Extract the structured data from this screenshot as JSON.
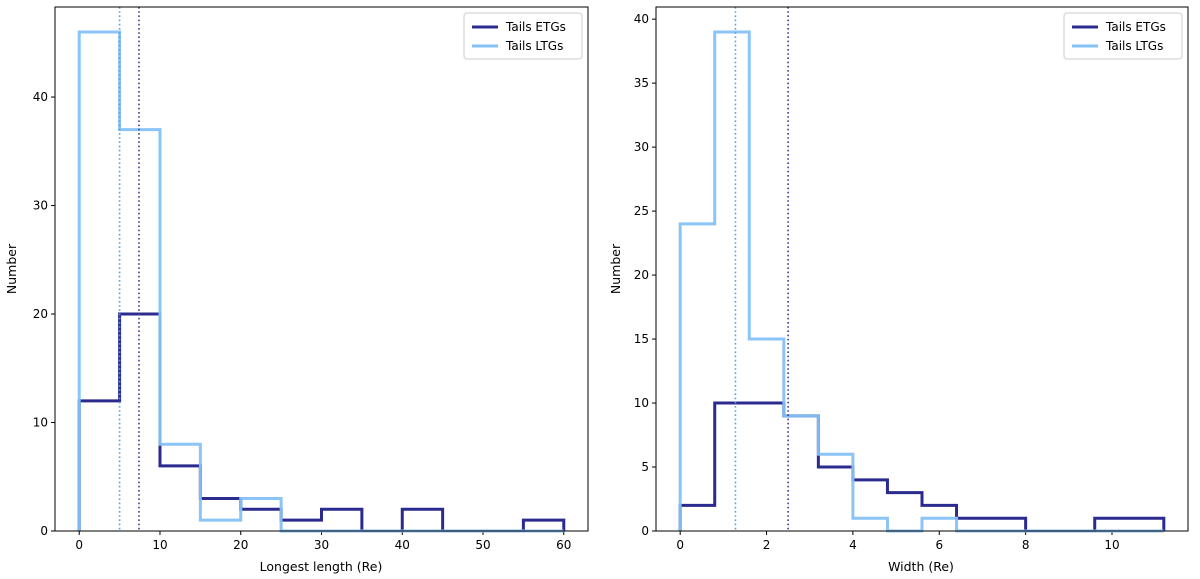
{
  "chart_data": [
    {
      "type": "histogram",
      "title": "",
      "xlabel": "Longest length (Re)",
      "ylabel": "Number",
      "xlim": [
        -3,
        63
      ],
      "ylim": [
        0,
        48.3
      ],
      "xticks": [
        0,
        10,
        20,
        30,
        40,
        50,
        60
      ],
      "yticks": [
        0,
        10,
        20,
        30,
        40
      ],
      "bin_edges": [
        0,
        5,
        10,
        15,
        20,
        25,
        30,
        35,
        40,
        45,
        50,
        55,
        60
      ],
      "series": [
        {
          "name": "Tails ETGs",
          "color": "#2b2b8f",
          "counts": [
            12,
            20,
            6,
            3,
            2,
            1,
            2,
            0,
            2,
            0,
            0,
            1
          ]
        },
        {
          "name": "Tails LTGs",
          "color": "#85c1f5",
          "counts": [
            46,
            37,
            8,
            1,
            3,
            0,
            0,
            0,
            0,
            0,
            0,
            0
          ]
        }
      ],
      "vlines": [
        {
          "series": "Tails LTGs",
          "x": 5.0,
          "color": "#4aa3e8",
          "style": "dotted"
        },
        {
          "series": "Tails ETGs",
          "x": 7.4,
          "color": "#3a3a8f",
          "style": "dotted"
        }
      ],
      "legend": {
        "position": "top-right",
        "entries": [
          "Tails ETGs",
          "Tails LTGs"
        ]
      }
    },
    {
      "type": "histogram",
      "title": "",
      "xlabel": "Width (Re)",
      "ylabel": "Number",
      "xlim": [
        -0.56,
        11.76
      ],
      "ylim": [
        0,
        40.95
      ],
      "xticks": [
        0,
        2,
        4,
        6,
        8,
        10
      ],
      "yticks": [
        0,
        5,
        10,
        15,
        20,
        25,
        30,
        35,
        40
      ],
      "bin_edges": [
        0,
        0.8,
        1.6,
        2.4,
        3.2,
        4.0,
        4.8,
        5.6,
        6.4,
        7.2,
        8.0,
        8.8,
        9.6,
        10.4,
        11.2
      ],
      "series": [
        {
          "name": "Tails ETGs",
          "color": "#2b2b8f",
          "counts": [
            2,
            10,
            10,
            9,
            5,
            4,
            3,
            2,
            1,
            1,
            0,
            0,
            1,
            1
          ]
        },
        {
          "name": "Tails LTGs",
          "color": "#85c1f5",
          "counts": [
            24,
            39,
            15,
            9,
            6,
            1,
            0,
            1,
            0,
            0,
            0,
            0,
            0,
            0
          ]
        }
      ],
      "vlines": [
        {
          "series": "Tails LTGs",
          "x": 1.28,
          "color": "#4aa3e8",
          "style": "dotted"
        },
        {
          "series": "Tails ETGs",
          "x": 2.5,
          "color": "#3a3a8f",
          "style": "dotted"
        }
      ],
      "legend": {
        "position": "top-right",
        "entries": [
          "Tails ETGs",
          "Tails LTGs"
        ]
      }
    }
  ]
}
